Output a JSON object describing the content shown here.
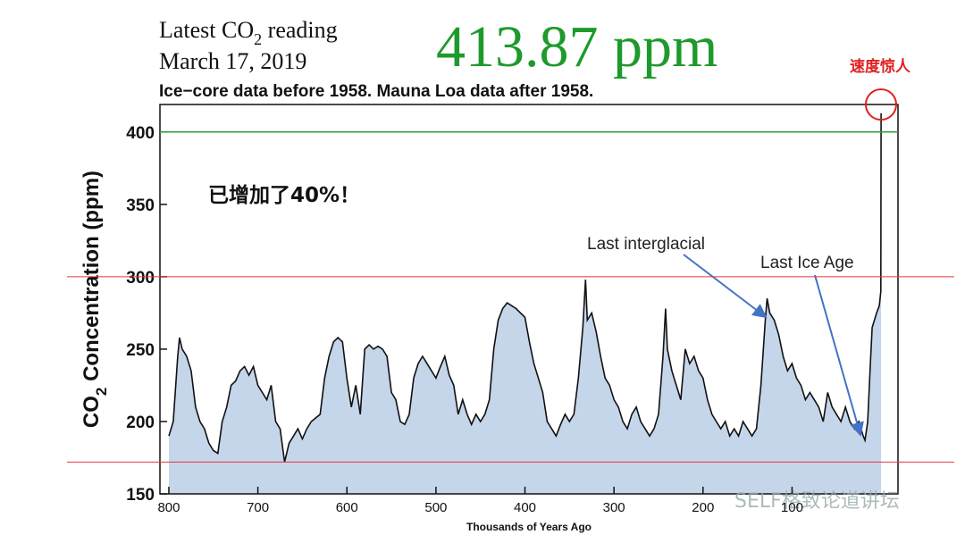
{
  "chart_data": {
    "type": "area",
    "title_parts": [
      "Latest CO",
      "2",
      " reading"
    ],
    "date": "March 17, 2019",
    "latest_reading": "413.87 ppm",
    "subtitle": "Ice−core data before 1958. Mauna Loa data after 1958.",
    "ylabel_parts": [
      "CO",
      "2",
      " Concentration (ppm)"
    ],
    "xlabel": "Thousands of Years Ago",
    "annotations": {
      "speed": "速度惊人",
      "increase": "已增加了40%！",
      "interglacial": "Last interglacial",
      "ice_age": "Last Ice Age"
    },
    "watermark": "SELF格致论道讲坛",
    "xlim": [
      810,
      -19
    ],
    "ylim": [
      150,
      419
    ],
    "xticks": [
      800,
      700,
      600,
      500,
      400,
      300,
      200,
      100
    ],
    "yticks": [
      150,
      200,
      250,
      300,
      350,
      400
    ],
    "hlines": [
      {
        "value": 400,
        "color": "#2e9e3a",
        "span": "plot"
      },
      {
        "value": 300,
        "color": "#e0393e",
        "span": "page"
      },
      {
        "value": 172,
        "color": "#e0393e",
        "span": "page"
      }
    ],
    "series": [
      {
        "name": "CO2",
        "color": "#111111",
        "fill": "#c5d5ea",
        "x": [
          800,
          795,
          790,
          788,
          785,
          780,
          775,
          770,
          765,
          760,
          755,
          750,
          745,
          740,
          735,
          730,
          725,
          720,
          715,
          710,
          705,
          700,
          695,
          690,
          685,
          680,
          675,
          670,
          665,
          660,
          655,
          650,
          645,
          640,
          630,
          625,
          620,
          615,
          610,
          605,
          600,
          595,
          590,
          585,
          580,
          575,
          570,
          565,
          560,
          555,
          550,
          545,
          540,
          535,
          530,
          525,
          520,
          515,
          510,
          505,
          500,
          495,
          490,
          485,
          480,
          475,
          470,
          465,
          460,
          455,
          450,
          445,
          440,
          435,
          430,
          425,
          420,
          415,
          410,
          405,
          400,
          395,
          390,
          385,
          380,
          375,
          370,
          365,
          360,
          355,
          350,
          345,
          340,
          335,
          332,
          330,
          325,
          320,
          315,
          310,
          305,
          300,
          295,
          290,
          285,
          280,
          275,
          270,
          265,
          260,
          255,
          250,
          245,
          242,
          240,
          235,
          230,
          225,
          220,
          215,
          210,
          205,
          200,
          195,
          190,
          185,
          180,
          175,
          170,
          165,
          160,
          155,
          150,
          145,
          140,
          135,
          130,
          128,
          125,
          120,
          115,
          110,
          105,
          100,
          95,
          90,
          85,
          80,
          75,
          70,
          65,
          60,
          55,
          50,
          45,
          40,
          35,
          30,
          25,
          20,
          18,
          15,
          12,
          10,
          5,
          2,
          0.3,
          0
        ],
        "values": [
          190,
          200,
          245,
          258,
          250,
          245,
          235,
          210,
          200,
          195,
          185,
          180,
          178,
          200,
          210,
          225,
          228,
          235,
          238,
          232,
          238,
          225,
          220,
          215,
          225,
          200,
          195,
          172,
          185,
          190,
          195,
          188,
          195,
          200,
          205,
          230,
          245,
          255,
          258,
          255,
          230,
          210,
          225,
          205,
          250,
          253,
          250,
          252,
          250,
          245,
          220,
          215,
          200,
          198,
          205,
          230,
          240,
          245,
          240,
          235,
          230,
          238,
          245,
          232,
          225,
          205,
          215,
          205,
          198,
          205,
          200,
          205,
          215,
          250,
          270,
          278,
          282,
          280,
          278,
          275,
          272,
          255,
          240,
          230,
          220,
          200,
          195,
          190,
          198,
          205,
          200,
          205,
          230,
          265,
          298,
          270,
          275,
          262,
          245,
          230,
          225,
          215,
          210,
          200,
          195,
          205,
          210,
          200,
          195,
          190,
          195,
          205,
          245,
          278,
          250,
          235,
          225,
          215,
          250,
          240,
          245,
          235,
          230,
          215,
          205,
          200,
          195,
          200,
          190,
          195,
          190,
          200,
          195,
          190,
          195,
          225,
          270,
          285,
          275,
          270,
          260,
          245,
          235,
          240,
          230,
          225,
          215,
          220,
          215,
          210,
          200,
          220,
          210,
          205,
          200,
          210,
          200,
          195,
          200,
          190,
          187,
          200,
          240,
          265,
          275,
          280,
          290,
          413
        ]
      }
    ]
  }
}
